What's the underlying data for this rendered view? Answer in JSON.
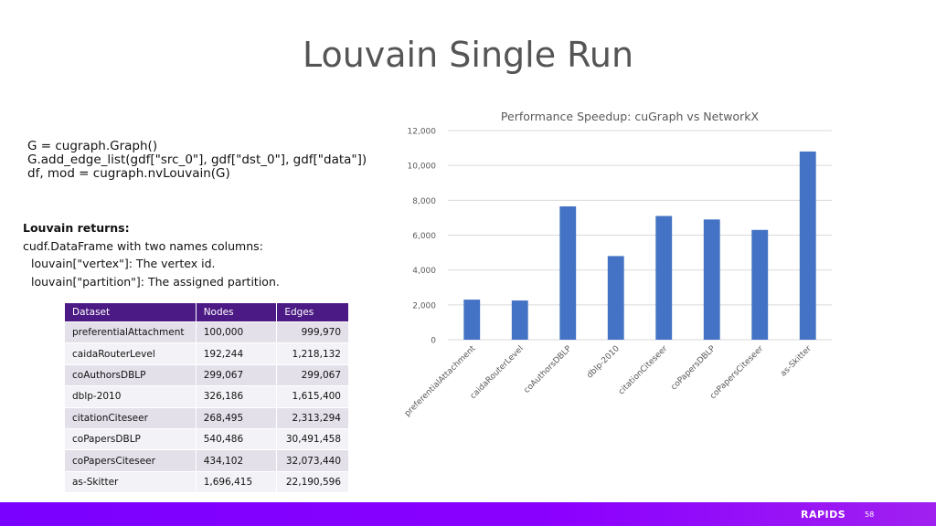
{
  "slide": {
    "title": "Louvain Single Run",
    "code": [
      "G = cugraph.Graph()",
      "G.add_edge_list(gdf[\"src_0\"], gdf[\"dst_0\"], gdf[\"data\"])",
      "df, mod = cugraph.nvLouvain(G)"
    ],
    "returns_heading": "Louvain returns:",
    "returns_desc": "cudf.DataFrame with two names columns:",
    "returns_vertex": "louvain[\"vertex\"]: The vertex id.",
    "returns_partition": "louvain[\"partition\"]: The assigned partition.",
    "brand": "RAPIDS",
    "page_number": "58"
  },
  "table": {
    "headers": [
      "Dataset",
      "Nodes",
      "Edges"
    ],
    "rows": [
      [
        "preferentialAttachment",
        "100,000",
        "999,970"
      ],
      [
        "caidaRouterLevel",
        "192,244",
        "1,218,132"
      ],
      [
        "coAuthorsDBLP",
        "299,067",
        "299,067"
      ],
      [
        "dblp-2010",
        "326,186",
        "1,615,400"
      ],
      [
        "citationCiteseer",
        "268,495",
        "2,313,294"
      ],
      [
        "coPapersDBLP",
        "540,486",
        "30,491,458"
      ],
      [
        "coPapersCiteseer",
        "434,102",
        "32,073,440"
      ],
      [
        "as-Skitter",
        "1,696,415",
        "22,190,596"
      ]
    ]
  },
  "chart_data": {
    "type": "bar",
    "title": "Performance Speedup: cuGraph vs NetworkX",
    "categories": [
      "preferentialAttachment",
      "caidaRouterLevel",
      "coAuthorsDBLP",
      "dblp-2010",
      "citationCiteseer",
      "coPapersDBLP",
      "coPapersCiteseer",
      "as-Skitter"
    ],
    "values": [
      2300,
      2250,
      7650,
      4800,
      7100,
      6900,
      6300,
      10800
    ],
    "ylim": [
      0,
      12000
    ],
    "yticks": [
      "0",
      "2,000",
      "4,000",
      "6,000",
      "8,000",
      "10,000",
      "12,000"
    ],
    "grid": true,
    "legend": "none",
    "bar_color": "#4472c4"
  }
}
